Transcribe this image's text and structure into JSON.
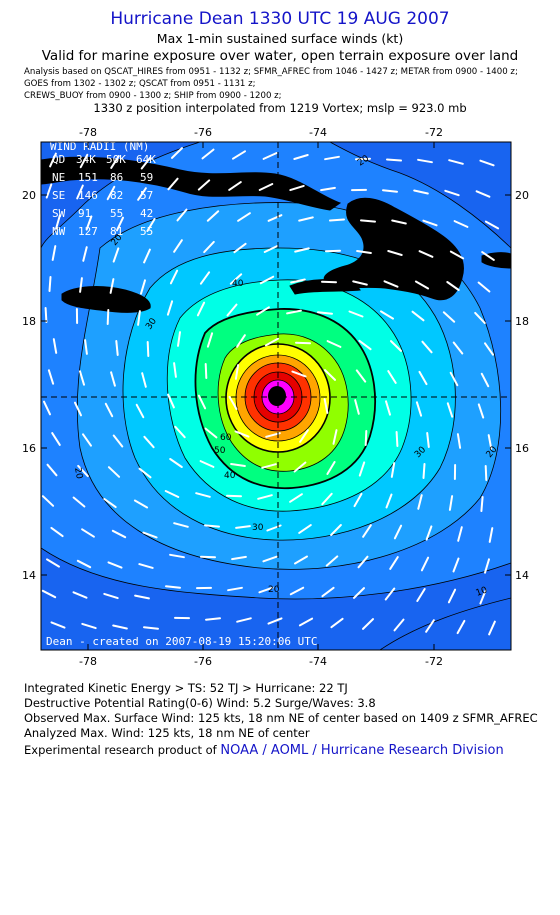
{
  "header": {
    "title": "Hurricane Dean 1330 UTC 19 AUG 2007",
    "subtitle": "Max 1-min sustained surface winds (kt)",
    "valid_for": "Valid for marine exposure over water, open terrain exposure over land",
    "analysis_lines": [
      "Analysis based on  QSCAT_HIRES from 0951 - 1132 z;  SFMR_AFREC from 1046 - 1427 z;  METAR from 0900 - 1400 z;",
      "GOES from 1302 - 1302 z;  QSCAT from 0951 - 1131 z;",
      "CREWS_BUOY from 0900 - 1300 z;  SHIP from 0900 - 1200 z;"
    ],
    "position_note": "1330 z position interpolated from 1219 Vortex; mslp = 923.0 mb"
  },
  "map": {
    "lon_ticks": [
      "-78",
      "-76",
      "-74",
      "-72"
    ],
    "lat_ticks": [
      "20",
      "18",
      "16",
      "14"
    ],
    "lon_range": [
      -79.8,
      -70.8
    ],
    "lat_range": [
      12.8,
      20.8
    ],
    "center": {
      "lon": -74.05,
      "lat": 16.8
    },
    "contour_labels": [
      "20",
      "20",
      "20",
      "20",
      "20",
      "30",
      "30",
      "30",
      "40",
      "40",
      "50",
      "60",
      "10"
    ],
    "watermark": "Dean  -  created on  2007-08-19  15:20:06 UTC",
    "wind_radii": {
      "title": "WIND RADII (NM)",
      "header": [
        "QD",
        "34K",
        "50K",
        "64K"
      ],
      "rows": [
        [
          "NE",
          "151",
          "86",
          "59"
        ],
        [
          "SE",
          "146",
          "82",
          "57"
        ],
        [
          "SW",
          "91",
          "55",
          "42"
        ],
        [
          "NW",
          "127",
          "81",
          "55"
        ]
      ]
    },
    "colors": {
      "ocean_base": "#1e82ff",
      "level_10": "#1864f0",
      "level_20": "#1ea0ff",
      "level_30": "#00c8ff",
      "level_40": "#00ffe6",
      "level_50": "#00ff80",
      "level_60": "#90ff00",
      "level_70": "#ffff00",
      "level_80": "#ffa500",
      "level_90": "#ff3200",
      "level_100": "#e60000",
      "level_110": "#ff00ff",
      "core": "#000000",
      "land": "#000000"
    }
  },
  "footer": {
    "ike_label": "Integrated Kinetic Energy > TS: 52 TJ   > Hurricane: 22 TJ",
    "dpr_label": "Destructive Potential Rating(0-6)   Wind: 5.2 Surge/Waves: 3.8",
    "observed_max": "Observed Max. Surface Wind: 125 kts, 18 nm NE of center based on 1409 z SFMR_AFREC",
    "analyzed_max": "Analyzed Max. Wind: 125 kts, 18 nm NE of center",
    "credit_prefix": "Experimental research product of ",
    "credit_link": "NOAA / AOML / Hurricane Research Division"
  }
}
